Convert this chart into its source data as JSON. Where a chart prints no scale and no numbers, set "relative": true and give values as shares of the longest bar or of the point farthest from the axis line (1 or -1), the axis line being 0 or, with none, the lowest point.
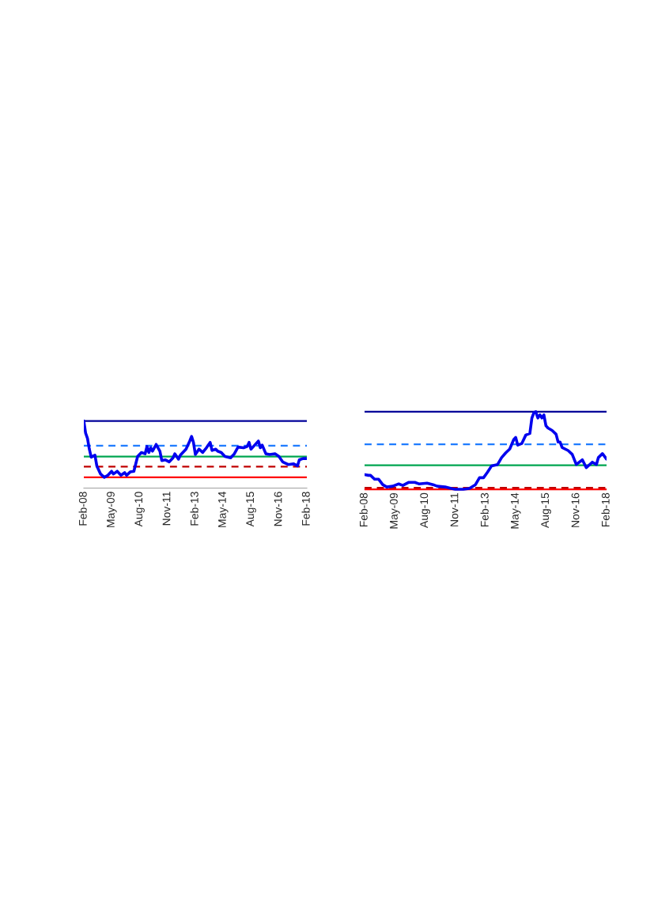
{
  "chart_data": [
    {
      "type": "line",
      "relative": true,
      "tick_labels": "x",
      "grid": false,
      "xlim": [
        "2008-02",
        "2018-02"
      ],
      "xticks": [
        {
          "value": "2008-02",
          "label": "Feb-08"
        },
        {
          "value": "2009-05",
          "label": "May-09"
        },
        {
          "value": "2010-08",
          "label": "Aug-10"
        },
        {
          "value": "2011-11",
          "label": "Nov-11"
        },
        {
          "value": "2013-02",
          "label": "Feb-13"
        },
        {
          "value": "2014-05",
          "label": "May-14"
        },
        {
          "value": "2015-08",
          "label": "Aug-15"
        },
        {
          "value": "2016-11",
          "label": "Nov-16"
        },
        {
          "value": "2018-02",
          "label": "Feb-18"
        }
      ],
      "series": [
        {
          "color": "#0000ee",
          "x": [
            "2008-02",
            "2008-03",
            "2008-04",
            "2008-05",
            "2008-06",
            "2008-08",
            "2008-09",
            "2008-11",
            "2009-01",
            "2009-03",
            "2009-05",
            "2009-06",
            "2009-08",
            "2009-10",
            "2009-12",
            "2010-01",
            "2010-03",
            "2010-05",
            "2010-07",
            "2010-09",
            "2010-11",
            "2010-12",
            "2011-01",
            "2011-02",
            "2011-03",
            "2011-05",
            "2011-07",
            "2011-08",
            "2011-10",
            "2011-12",
            "2012-02",
            "2012-03",
            "2012-05",
            "2012-06",
            "2012-09",
            "2012-11",
            "2012-12",
            "2013-01",
            "2013-02",
            "2013-04",
            "2013-06",
            "2013-08",
            "2013-10",
            "2013-11",
            "2014-01",
            "2014-02",
            "2014-04",
            "2014-06",
            "2014-09",
            "2014-11",
            "2015-01",
            "2015-04",
            "2015-06",
            "2015-07",
            "2015-08",
            "2015-10",
            "2015-12",
            "2016-01",
            "2016-02",
            "2016-04",
            "2016-06",
            "2016-09",
            "2016-11",
            "2017-01",
            "2017-04",
            "2017-07",
            "2017-09",
            "2017-10",
            "2017-12",
            "2018-02"
          ],
          "values": [
            1.0,
            0.82,
            0.74,
            0.58,
            0.46,
            0.49,
            0.33,
            0.21,
            0.16,
            0.19,
            0.25,
            0.21,
            0.25,
            0.19,
            0.23,
            0.19,
            0.24,
            0.25,
            0.47,
            0.53,
            0.51,
            0.62,
            0.53,
            0.6,
            0.55,
            0.65,
            0.55,
            0.41,
            0.42,
            0.39,
            0.45,
            0.51,
            0.43,
            0.49,
            0.58,
            0.7,
            0.77,
            0.68,
            0.5,
            0.58,
            0.53,
            0.6,
            0.68,
            0.56,
            0.58,
            0.55,
            0.53,
            0.47,
            0.45,
            0.51,
            0.61,
            0.6,
            0.62,
            0.68,
            0.58,
            0.64,
            0.7,
            0.6,
            0.64,
            0.51,
            0.5,
            0.51,
            0.47,
            0.39,
            0.35,
            0.36,
            0.33,
            0.42,
            0.44,
            0.44
          ]
        }
      ],
      "ref_lines": [
        {
          "axis": "y",
          "value": 0.47,
          "color": "#00a550",
          "line_style": "solid"
        },
        {
          "axis": "y",
          "value": 1.0,
          "color": "#000099",
          "line_style": "solid"
        },
        {
          "axis": "y",
          "value": 0.16,
          "color": "#ff0000",
          "line_style": "solid"
        },
        {
          "axis": "y",
          "value": 0.63,
          "color": "#1e7bff",
          "line_style": "dashed"
        },
        {
          "axis": "y",
          "value": 0.32,
          "color": "#c00000",
          "line_style": "dashed"
        }
      ]
    },
    {
      "type": "line",
      "relative": true,
      "tick_labels": "x",
      "grid": false,
      "xlim": [
        "2008-02",
        "2018-02"
      ],
      "xticks": [
        {
          "value": "2008-02",
          "label": "Feb-08"
        },
        {
          "value": "2009-05",
          "label": "May-09"
        },
        {
          "value": "2010-08",
          "label": "Aug-10"
        },
        {
          "value": "2011-11",
          "label": "Nov-11"
        },
        {
          "value": "2013-02",
          "label": "Feb-13"
        },
        {
          "value": "2014-05",
          "label": "May-14"
        },
        {
          "value": "2015-08",
          "label": "Aug-15"
        },
        {
          "value": "2016-11",
          "label": "Nov-16"
        },
        {
          "value": "2018-02",
          "label": "Feb-18"
        }
      ],
      "series": [
        {
          "color": "#0000ee",
          "x": [
            "2008-02",
            "2008-04",
            "2008-05",
            "2008-07",
            "2008-09",
            "2008-11",
            "2009-01",
            "2009-04",
            "2009-07",
            "2009-09",
            "2009-12",
            "2010-03",
            "2010-05",
            "2010-09",
            "2010-12",
            "2011-02",
            "2011-06",
            "2011-09",
            "2011-11",
            "2012-03",
            "2012-06",
            "2012-09",
            "2012-11",
            "2013-01",
            "2013-03",
            "2013-05",
            "2013-08",
            "2013-10",
            "2013-12",
            "2014-02",
            "2014-04",
            "2014-05",
            "2014-06",
            "2014-08",
            "2014-10",
            "2014-12",
            "2015-01",
            "2015-02",
            "2015-03",
            "2015-04",
            "2015-05",
            "2015-06",
            "2015-07",
            "2015-08",
            "2015-09",
            "2015-11",
            "2016-01",
            "2016-02",
            "2016-03",
            "2016-04",
            "2016-07",
            "2016-09",
            "2016-11",
            "2017-02",
            "2017-04",
            "2017-07",
            "2017-09",
            "2017-10",
            "2017-12",
            "2018-02"
          ],
          "values": [
            0.19,
            0.18,
            0.18,
            0.13,
            0.13,
            0.06,
            0.03,
            0.04,
            0.07,
            0.05,
            0.09,
            0.09,
            0.07,
            0.08,
            0.06,
            0.04,
            0.03,
            0.01,
            0.0,
            0.0,
            0.01,
            0.06,
            0.15,
            0.15,
            0.22,
            0.3,
            0.32,
            0.41,
            0.47,
            0.52,
            0.64,
            0.67,
            0.57,
            0.59,
            0.7,
            0.72,
            0.92,
            0.99,
            1.0,
            0.92,
            0.96,
            0.92,
            0.96,
            0.82,
            0.79,
            0.76,
            0.71,
            0.61,
            0.61,
            0.54,
            0.5,
            0.45,
            0.32,
            0.38,
            0.28,
            0.35,
            0.32,
            0.41,
            0.46,
            0.39
          ]
        }
      ],
      "ref_lines": [
        {
          "axis": "y",
          "value": 0.31,
          "color": "#00a550",
          "line_style": "solid"
        },
        {
          "axis": "y",
          "value": 1.0,
          "color": "#000099",
          "line_style": "solid"
        },
        {
          "axis": "y",
          "value": 0.0,
          "color": "#ff0000",
          "line_style": "solid"
        },
        {
          "axis": "y",
          "value": 0.58,
          "color": "#1e7bff",
          "line_style": "dashed"
        },
        {
          "axis": "y",
          "value": 0.02,
          "color": "#c00000",
          "line_style": "dashed"
        }
      ]
    }
  ]
}
